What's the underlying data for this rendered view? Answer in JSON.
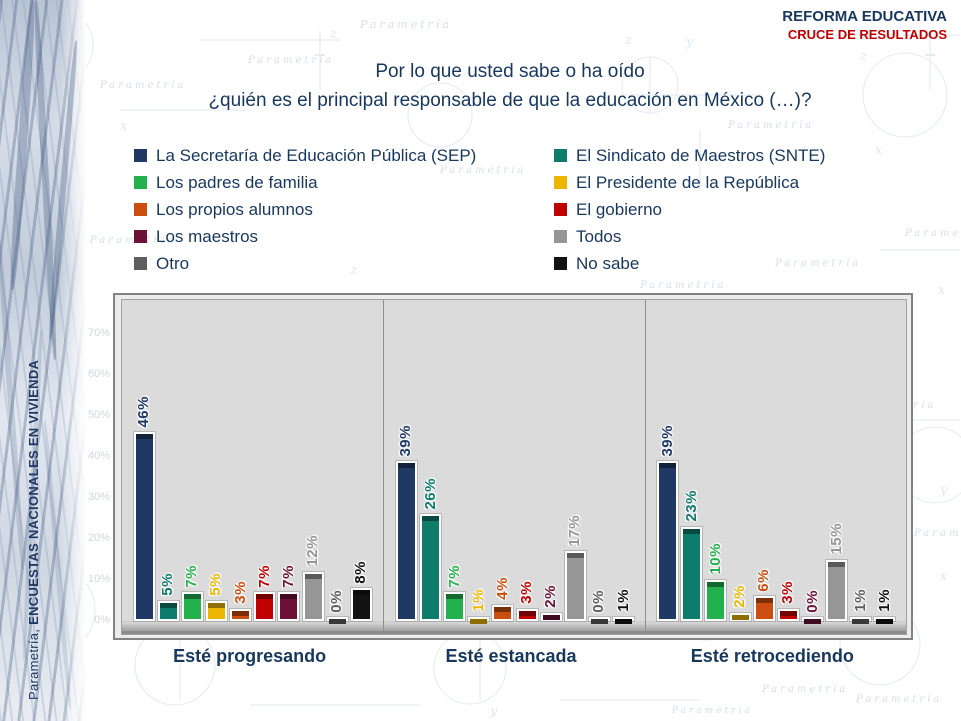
{
  "header": {
    "line1": "REFORMA EDUCATIVA",
    "line2": "CRUCE DE RESULTADOS"
  },
  "question": {
    "line1": "Por lo que usted sabe o ha oído",
    "line2": "¿quién es el principal responsable de que la educación en México (…)?"
  },
  "sidebar": {
    "brand": "Parametría, ",
    "label": "ENCUESTAS NACIONALES EN VIVIENDA"
  },
  "watermark": {
    "text": "Parametría"
  },
  "colors": {
    "title_navy": "#17375D",
    "accent_red": "#C00000",
    "plot_background": "#DCDCDC"
  },
  "chart_data": {
    "type": "bar",
    "title": "Por lo que usted sabe o ha oído ¿quién es el principal responsable de que la educación en México (…)?",
    "categories": [
      "Esté progresando",
      "Esté estancada",
      "Esté retrocediendo"
    ],
    "series": [
      {
        "name": "La Secretaría de Educación Pública (SEP)",
        "color": "#1F3864",
        "values": [
          46,
          39,
          39
        ]
      },
      {
        "name": "El Sindicato de Maestros (SNTE)",
        "color": "#0E7C6B",
        "values": [
          5,
          26,
          23
        ]
      },
      {
        "name": "Los padres de familia",
        "color": "#22B14C",
        "values": [
          7,
          7,
          10
        ]
      },
      {
        "name": "El Presidente de la República",
        "color": "#EDB700",
        "values": [
          5,
          1,
          2
        ]
      },
      {
        "name": "Los propios alumnos",
        "color": "#CC4E0E",
        "values": [
          3,
          4,
          6
        ]
      },
      {
        "name": "El gobierno",
        "color": "#C00000",
        "values": [
          7,
          3,
          3
        ]
      },
      {
        "name": "Los maestros",
        "color": "#6B1236",
        "values": [
          7,
          2,
          0
        ]
      },
      {
        "name": "Todos",
        "color": "#969696",
        "values": [
          12,
          17,
          15
        ]
      },
      {
        "name": "Otro",
        "color": "#5E5E5E",
        "values": [
          0,
          0,
          1
        ]
      },
      {
        "name": "No sabe",
        "color": "#121212",
        "values": [
          8,
          1,
          1
        ]
      }
    ],
    "value_suffix": "%",
    "ylim": [
      0,
      80
    ],
    "yticks": [
      "0%",
      "10%",
      "20%",
      "30%",
      "40%",
      "50%",
      "60%",
      "70%"
    ],
    "legend_columns": [
      [
        0,
        2,
        4,
        6,
        8
      ],
      [
        1,
        3,
        5,
        7,
        9
      ]
    ],
    "legend_position": "top",
    "grid": false
  }
}
